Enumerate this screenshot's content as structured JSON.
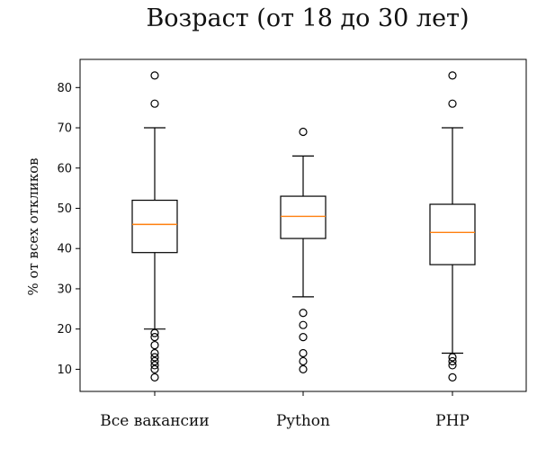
{
  "chart_data": {
    "type": "boxplot",
    "title": "Возраст (от 18 до 30 лет)",
    "xlabel": "",
    "ylabel": "% от всех откликов",
    "ylim": [
      4.5,
      87
    ],
    "yticks": [
      10,
      20,
      30,
      40,
      50,
      60,
      70,
      80
    ],
    "categories": [
      "Все вакансии",
      "Python",
      "PHP"
    ],
    "series": [
      {
        "name": "Все вакансии",
        "whisker_low": 20,
        "q1": 39,
        "median": 46,
        "q3": 52,
        "whisker_high": 70,
        "outliers": [
          83,
          76,
          19,
          18,
          16,
          14,
          13,
          12,
          11,
          10,
          8
        ]
      },
      {
        "name": "Python",
        "whisker_low": 28,
        "q1": 42.5,
        "median": 48,
        "q3": 53,
        "whisker_high": 63,
        "outliers": [
          69,
          24,
          21,
          18,
          14,
          12,
          10
        ]
      },
      {
        "name": "PHP",
        "whisker_low": 14,
        "q1": 36,
        "median": 44,
        "q3": 51,
        "whisker_high": 70,
        "outliers": [
          83,
          76,
          13,
          12,
          11,
          8
        ]
      }
    ],
    "colors": {
      "box": "#000000",
      "median": "#ff7f0e",
      "outlier": "#000000"
    },
    "grid": false,
    "legend": "none"
  }
}
